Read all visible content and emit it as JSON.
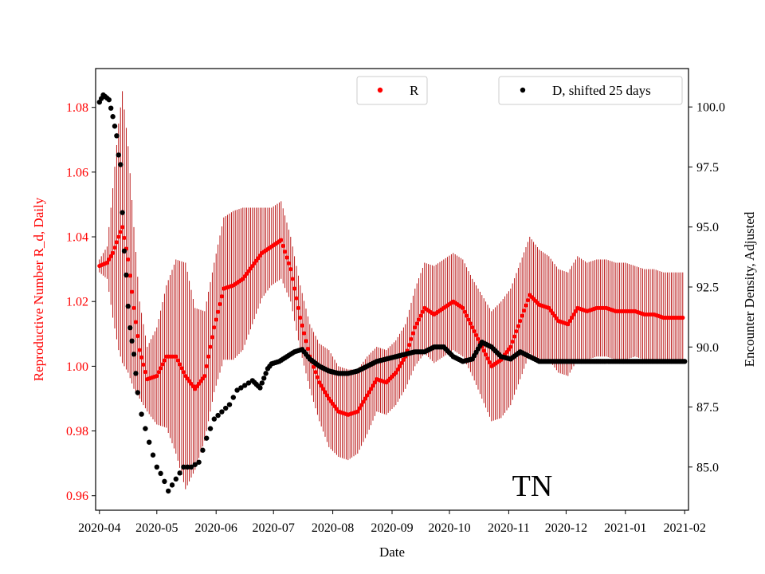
{
  "colors": {
    "r_series": "#ff0000",
    "errorbar": "#b30000",
    "d_series": "#000000",
    "axis": "#000000"
  },
  "chart_data": {
    "type": "scatter",
    "xlabel": "Date",
    "ylabel_left": "Reproductive Number R_d, Daily",
    "ylabel_right": "Encounter Density, Adjusted",
    "annotation": "TN",
    "x_ticks": [
      "2020-04",
      "2020-05",
      "2020-06",
      "2020-07",
      "2020-08",
      "2020-09",
      "2020-10",
      "2020-11",
      "2020-12",
      "2021-01",
      "2021-02"
    ],
    "xlim_days": [
      -2,
      308
    ],
    "ylim_left": [
      0.9555,
      1.092
    ],
    "ylim_right": [
      83.2,
      101.6
    ],
    "y_ticks_left": [
      "0.96",
      "0.98",
      "1.00",
      "1.02",
      "1.04",
      "1.06",
      "1.08"
    ],
    "y_ticks_right": [
      "85.0",
      "87.5",
      "90.0",
      "92.5",
      "95.0",
      "97.5",
      "100.0"
    ],
    "legend": [
      {
        "name": "R",
        "color": "#ff0000",
        "position": "top-center"
      },
      {
        "name": "D, shifted 25 days",
        "color": "#000000",
        "position": "top-right"
      }
    ],
    "series": [
      {
        "name": "R",
        "axis": "left",
        "marker": "circle",
        "error_bars": true,
        "note": "points at day, value, error half-width",
        "points": [
          [
            0,
            1.031,
            0.002
          ],
          [
            4,
            1.032,
            0.005
          ],
          [
            7,
            1.035,
            0.02
          ],
          [
            10,
            1.04,
            0.035
          ],
          [
            12,
            1.043,
            0.042
          ],
          [
            15,
            1.033,
            0.035
          ],
          [
            18,
            1.018,
            0.025
          ],
          [
            21,
            1.005,
            0.015
          ],
          [
            25,
            0.996,
            0.01
          ],
          [
            30,
            0.997,
            0.015
          ],
          [
            35,
            1.003,
            0.022
          ],
          [
            40,
            1.003,
            0.03
          ],
          [
            45,
            0.997,
            0.035
          ],
          [
            50,
            0.993,
            0.025
          ],
          [
            55,
            0.997,
            0.02
          ],
          [
            60,
            1.012,
            0.02
          ],
          [
            65,
            1.024,
            0.022
          ],
          [
            70,
            1.025,
            0.023
          ],
          [
            75,
            1.027,
            0.022
          ],
          [
            80,
            1.031,
            0.018
          ],
          [
            85,
            1.035,
            0.014
          ],
          [
            90,
            1.037,
            0.012
          ],
          [
            95,
            1.039,
            0.012
          ],
          [
            100,
            1.03,
            0.01
          ],
          [
            105,
            1.015,
            0.01
          ],
          [
            110,
            1.003,
            0.01
          ],
          [
            115,
            0.995,
            0.012
          ],
          [
            120,
            0.99,
            0.015
          ],
          [
            125,
            0.986,
            0.014
          ],
          [
            130,
            0.985,
            0.014
          ],
          [
            135,
            0.986,
            0.013
          ],
          [
            140,
            0.991,
            0.012
          ],
          [
            145,
            0.996,
            0.01
          ],
          [
            150,
            0.995,
            0.01
          ],
          [
            155,
            0.998,
            0.01
          ],
          [
            160,
            1.003,
            0.01
          ],
          [
            165,
            1.012,
            0.012
          ],
          [
            170,
            1.018,
            0.014
          ],
          [
            175,
            1.016,
            0.015
          ],
          [
            180,
            1.018,
            0.015
          ],
          [
            185,
            1.02,
            0.015
          ],
          [
            190,
            1.018,
            0.015
          ],
          [
            195,
            1.012,
            0.015
          ],
          [
            200,
            1.006,
            0.016
          ],
          [
            205,
            1.0,
            0.017
          ],
          [
            210,
            1.002,
            0.018
          ],
          [
            215,
            1.006,
            0.018
          ],
          [
            220,
            1.014,
            0.018
          ],
          [
            225,
            1.022,
            0.018
          ],
          [
            230,
            1.019,
            0.017
          ],
          [
            235,
            1.018,
            0.016
          ],
          [
            240,
            1.014,
            0.016
          ],
          [
            245,
            1.013,
            0.016
          ],
          [
            250,
            1.018,
            0.016
          ],
          [
            255,
            1.017,
            0.015
          ],
          [
            260,
            1.018,
            0.015
          ],
          [
            265,
            1.018,
            0.015
          ],
          [
            270,
            1.017,
            0.015
          ],
          [
            275,
            1.017,
            0.015
          ],
          [
            280,
            1.017,
            0.014
          ],
          [
            285,
            1.016,
            0.014
          ],
          [
            290,
            1.016,
            0.014
          ],
          [
            295,
            1.015,
            0.014
          ],
          [
            300,
            1.015,
            0.014
          ],
          [
            305,
            1.015,
            0.014
          ]
        ]
      },
      {
        "name": "D, shifted 25 days",
        "axis": "right",
        "marker": "circle",
        "note": "points at day, value",
        "points": [
          [
            0,
            100.2
          ],
          [
            2,
            100.5
          ],
          [
            5,
            100.3
          ],
          [
            7,
            99.6
          ],
          [
            9,
            98.8
          ],
          [
            10,
            98.0
          ],
          [
            11,
            97.6
          ],
          [
            12,
            95.6
          ],
          [
            13,
            94.0
          ],
          [
            14,
            93.0
          ],
          [
            15,
            91.7
          ],
          [
            16,
            90.8
          ],
          [
            18,
            89.7
          ],
          [
            20,
            88.1
          ],
          [
            22,
            87.2
          ],
          [
            25,
            86.3
          ],
          [
            28,
            85.5
          ],
          [
            30,
            85.0
          ],
          [
            33,
            84.6
          ],
          [
            36,
            84.0
          ],
          [
            40,
            84.5
          ],
          [
            44,
            85.0
          ],
          [
            48,
            85.0
          ],
          [
            52,
            85.2
          ],
          [
            56,
            86.2
          ],
          [
            60,
            87.0
          ],
          [
            64,
            87.3
          ],
          [
            68,
            87.6
          ],
          [
            72,
            88.2
          ],
          [
            76,
            88.4
          ],
          [
            80,
            88.6
          ],
          [
            84,
            88.3
          ],
          [
            88,
            89.1
          ],
          [
            90,
            89.3
          ],
          [
            94,
            89.4
          ],
          [
            98,
            89.6
          ],
          [
            102,
            89.8
          ],
          [
            106,
            89.9
          ],
          [
            110,
            89.5
          ],
          [
            115,
            89.2
          ],
          [
            120,
            89.0
          ],
          [
            125,
            88.9
          ],
          [
            130,
            88.9
          ],
          [
            135,
            89.0
          ],
          [
            140,
            89.2
          ],
          [
            145,
            89.4
          ],
          [
            150,
            89.5
          ],
          [
            155,
            89.6
          ],
          [
            160,
            89.7
          ],
          [
            165,
            89.8
          ],
          [
            170,
            89.8
          ],
          [
            175,
            90.0
          ],
          [
            180,
            90.0
          ],
          [
            185,
            89.6
          ],
          [
            190,
            89.4
          ],
          [
            195,
            89.5
          ],
          [
            200,
            90.2
          ],
          [
            205,
            90.0
          ],
          [
            210,
            89.6
          ],
          [
            215,
            89.5
          ],
          [
            220,
            89.8
          ],
          [
            225,
            89.6
          ],
          [
            230,
            89.4
          ],
          [
            240,
            89.4
          ],
          [
            250,
            89.4
          ],
          [
            260,
            89.4
          ],
          [
            270,
            89.4
          ],
          [
            280,
            89.4
          ],
          [
            290,
            89.4
          ],
          [
            300,
            89.4
          ],
          [
            306,
            89.4
          ]
        ]
      }
    ]
  }
}
